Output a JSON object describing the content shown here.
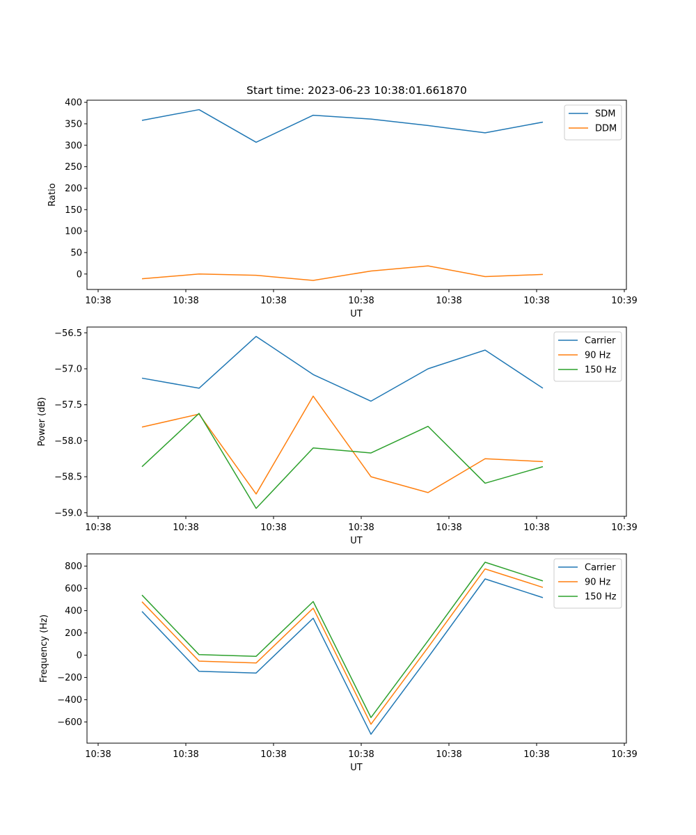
{
  "figure": {
    "title": "Start time: 2023-06-23 10:38:01.661870"
  },
  "chart_data": [
    {
      "type": "line",
      "xlabel": "UT",
      "ylabel": "Ratio",
      "x_tick_labels": [
        "10:38",
        "10:38",
        "10:38",
        "10:38",
        "10:38",
        "10:38",
        "10:38",
        "10:39"
      ],
      "x_points": 8,
      "ylim": [
        -36,
        405
      ],
      "y_ticks": [
        0,
        50,
        100,
        150,
        200,
        250,
        300,
        350,
        400
      ],
      "y_tick_labels": [
        "0",
        "50",
        "100",
        "150",
        "200",
        "250",
        "300",
        "350",
        "400"
      ],
      "legend_position": "top-right",
      "series": [
        {
          "name": "SDM",
          "color": "#1f77b4",
          "values": [
            358,
            383,
            307,
            370,
            361,
            346,
            329,
            354
          ]
        },
        {
          "name": "DDM",
          "color": "#ff7f0e",
          "values": [
            -11,
            0,
            -3,
            -15,
            7,
            19,
            -6,
            -1
          ]
        }
      ]
    },
    {
      "type": "line",
      "xlabel": "UT",
      "ylabel": "Power (dB)",
      "x_tick_labels": [
        "10:38",
        "10:38",
        "10:38",
        "10:38",
        "10:38",
        "10:38",
        "10:38",
        "10:39"
      ],
      "x_points": 8,
      "ylim": [
        -59.05,
        -56.42
      ],
      "y_ticks": [
        -59.0,
        -58.5,
        -58.0,
        -57.5,
        -57.0,
        -56.5
      ],
      "y_tick_labels": [
        "−59.0",
        "−58.5",
        "−58.0",
        "−57.5",
        "−57.0",
        "−56.5"
      ],
      "legend_position": "top-right",
      "series": [
        {
          "name": "Carrier",
          "color": "#1f77b4",
          "values": [
            -57.13,
            -57.27,
            -56.55,
            -57.08,
            -57.45,
            -57.0,
            -56.74,
            -57.27
          ]
        },
        {
          "name": "90 Hz",
          "color": "#ff7f0e",
          "values": [
            -57.81,
            -57.63,
            -58.74,
            -57.38,
            -58.5,
            -58.72,
            -58.25,
            -58.29
          ]
        },
        {
          "name": "150 Hz",
          "color": "#2ca02c",
          "values": [
            -58.36,
            -57.62,
            -58.94,
            -58.1,
            -58.17,
            -57.8,
            -58.59,
            -58.36
          ]
        }
      ]
    },
    {
      "type": "line",
      "xlabel": "UT",
      "ylabel": "Frequency (Hz)",
      "x_tick_labels": [
        "10:38",
        "10:38",
        "10:38",
        "10:38",
        "10:38",
        "10:38",
        "10:38",
        "10:39"
      ],
      "x_points": 8,
      "ylim": [
        -790,
        910
      ],
      "y_ticks": [
        -600,
        -400,
        -200,
        0,
        200,
        400,
        600,
        800
      ],
      "y_tick_labels": [
        "−600",
        "−400",
        "−200",
        "0",
        "200",
        "400",
        "600",
        "800"
      ],
      "legend_position": "top-right",
      "series": [
        {
          "name": "Carrier",
          "color": "#1f77b4",
          "values": [
            393,
            -145,
            -160,
            332,
            -710,
            -20,
            685,
            517
          ]
        },
        {
          "name": "90 Hz",
          "color": "#ff7f0e",
          "values": [
            480,
            -53,
            -70,
            422,
            -620,
            70,
            775,
            609
          ]
        },
        {
          "name": "150 Hz",
          "color": "#2ca02c",
          "values": [
            540,
            5,
            -10,
            482,
            -560,
            130,
            835,
            667
          ]
        }
      ]
    }
  ]
}
